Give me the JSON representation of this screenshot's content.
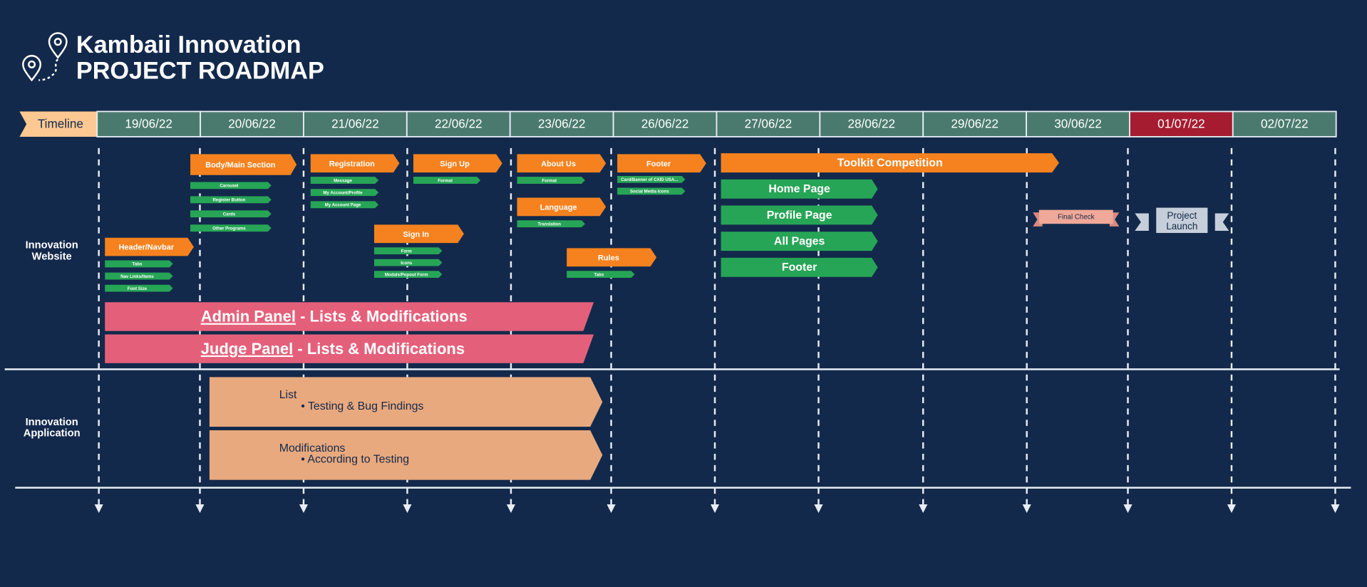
{
  "header": {
    "title_line1": "Kambaii Innovation",
    "title_line2": "PROJECT ROADMAP"
  },
  "timeline": {
    "label": "Timeline",
    "dates": [
      "19/06/22",
      "20/06/22",
      "21/06/22",
      "22/06/22",
      "23/06/22",
      "26/06/22",
      "27/06/22",
      "28/06/22",
      "29/06/22",
      "30/06/22",
      "01/07/22",
      "02/07/22"
    ]
  },
  "rows": [
    {
      "label_lines": [
        "Innovation",
        "Website"
      ]
    },
    {
      "label_lines": [
        "Innovation",
        "Application"
      ]
    }
  ],
  "website_tasks": [
    {
      "label": "Header/Navbar",
      "subtasks": [
        "Tabs",
        "Nav Links/Items",
        "Font Size"
      ]
    },
    {
      "label": "Body/Main Section",
      "subtasks": [
        "Carousel",
        "Register Button",
        "Cards",
        "Other Programs"
      ]
    },
    {
      "label": "Registration",
      "subtasks": [
        "Message",
        "My Account/Profile",
        "My Account Page"
      ]
    },
    {
      "label": "Sign Up",
      "subtasks": [
        "Format"
      ]
    },
    {
      "label": "Sign In",
      "subtasks": [
        "Form",
        "Icons",
        "Modals/Popout Form"
      ]
    },
    {
      "label": "About Us",
      "subtasks": [
        "Format"
      ]
    },
    {
      "label": "Language",
      "subtasks": [
        "Translation"
      ]
    },
    {
      "label": "Rules",
      "subtasks": [
        "Tabs"
      ]
    },
    {
      "label": "Footer",
      "subtasks": [
        "Card/Banner of CXID USA...",
        "Social Media Icons"
      ]
    },
    {
      "label": "Toolkit Competition",
      "subtasks": [
        "Home Page",
        "Profile Page",
        "All Pages",
        "Footer"
      ]
    }
  ],
  "milestones": [
    "Final Check",
    "Project Launch"
  ],
  "panels": [
    {
      "link": "Admin Panel",
      "rest": "- Lists & Modifications"
    },
    {
      "link": "Judge Panel",
      "rest": "- Lists & Modifications"
    }
  ],
  "application_tasks": [
    {
      "label": "List",
      "bullet": "• Testing & Bug Findings"
    },
    {
      "label": "Modifications",
      "bullet": "• According to Testing"
    }
  ]
}
